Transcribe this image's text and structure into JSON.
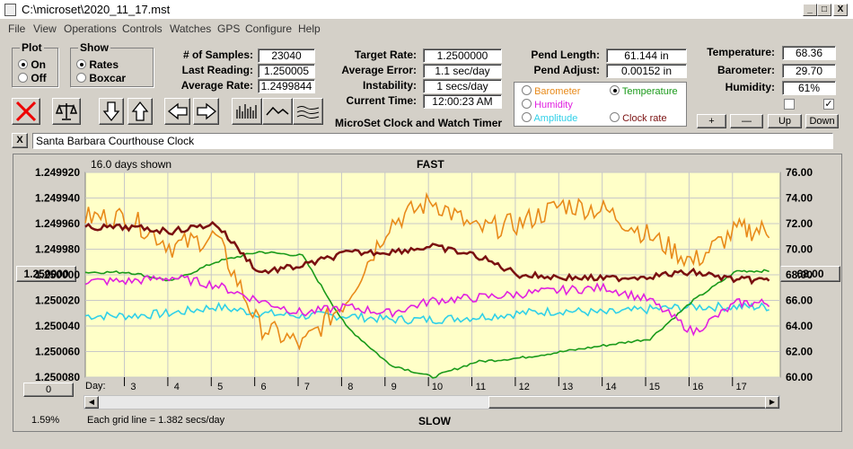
{
  "window": {
    "title": "C:\\microset\\2020_11_17.mst",
    "min": "_",
    "max": "□",
    "close": "X"
  },
  "menu": [
    "File",
    "View",
    "Operations",
    "Controls",
    "Watches",
    "GPS",
    "Configure",
    "Help"
  ],
  "plot": {
    "legend": "Plot",
    "on": "On",
    "off": "Off",
    "selected": "On"
  },
  "show": {
    "legend": "Show",
    "rates": "Rates",
    "boxcar": "Boxcar",
    "selected": "Rates"
  },
  "stats": {
    "samples_label": "# of Samples:",
    "samples": "23040",
    "last_label": "Last Reading:",
    "last": "1.250005",
    "avg_label": "Average Rate:",
    "avg": "1.2499844",
    "target_label": "Target Rate:",
    "target": "1.2500000",
    "err_label": "Average Error:",
    "err": "1.1 sec/day",
    "inst_label": "Instability:",
    "inst": "1 secs/day",
    "time_label": "Current Time:",
    "time": "12:00:23 AM",
    "pend_len_label": "Pend Length:",
    "pend_len": "61.144 in",
    "pend_adj_label": "Pend Adjust:",
    "pend_adj": "0.00152 in",
    "temp_label": "Temperature:",
    "temp": "68.36",
    "baro_label": "Barometer:",
    "baro": "29.70",
    "hum_label": "Humidity:",
    "hum": "61%"
  },
  "app_title": "MicroSet Clock and Watch Timer",
  "channels": [
    {
      "name": "Barometer",
      "color": "#e88a1a"
    },
    {
      "name": "Temperature",
      "color": "#1a9a1a",
      "selected": true
    },
    {
      "name": "Humidity",
      "color": "#e020e0"
    },
    {
      "name": "Clock rate",
      "color": "#7a1010"
    },
    {
      "name": "Amplitude",
      "color": "#30d0e8"
    }
  ],
  "right_buttons": [
    "+",
    "—",
    "Up",
    "Down"
  ],
  "clock_name": "Santa Barbara Courthouse Clock",
  "close_x": "X",
  "chart": {
    "shown": "16.0 days shown",
    "fast": "FAST",
    "slow": "SLOW",
    "day_label": "Day:",
    "grid_note": "Each grid line = 1.382 secs/day",
    "percent": "1.59%",
    "left_btn": "1.250000",
    "right_btn": "68.00",
    "zero_btn": "0"
  },
  "chart_data": {
    "type": "line",
    "x": [
      3,
      4,
      5,
      6,
      7,
      8,
      9,
      10,
      11,
      12,
      13,
      14,
      15,
      16,
      17
    ],
    "y_left": [
      "1.249920",
      "1.249940",
      "1.249960",
      "1.249980",
      "1.250000",
      "1.250020",
      "1.250040",
      "1.250060",
      "1.250080"
    ],
    "y_right": [
      "76.00",
      "74.00",
      "72.00",
      "70.00",
      "68.00",
      "66.00",
      "64.00",
      "62.00",
      "60.00"
    ],
    "series": [
      {
        "name": "Clock rate",
        "color": "#7a1010",
        "unit": "left",
        "values": [
          1.249963,
          1.249966,
          1.24996,
          1.249998,
          1.249993,
          1.249983,
          1.249982,
          1.249978,
          1.249985,
          1.25,
          1.250002,
          1.250003,
          1.250001,
          1.249998,
          1.250004
        ]
      },
      {
        "name": "Barometer",
        "color": "#e88a1a",
        "unit": "right",
        "values": [
          72.5,
          70.2,
          71.0,
          64.0,
          62.5,
          66.0,
          72.0,
          73.8,
          71.5,
          72.0,
          73.5,
          73.0,
          71.0,
          69.0,
          71.5
        ]
      },
      {
        "name": "Temperature",
        "color": "#1a9a1a",
        "unit": "right",
        "values": [
          68.2,
          67.5,
          69.0,
          69.8,
          69.5,
          64.0,
          61.0,
          60.0,
          61.2,
          61.5,
          62.0,
          62.5,
          63.0,
          66.0,
          68.3
        ]
      },
      {
        "name": "Humidity",
        "color": "#e020e0",
        "unit": "right",
        "values": [
          67.5,
          67.8,
          67.2,
          66.0,
          65.0,
          65.5,
          65.0,
          66.0,
          66.2,
          66.5,
          66.8,
          67.0,
          66.0,
          63.5,
          65.8
        ]
      },
      {
        "name": "Amplitude",
        "color": "#30d0e8",
        "unit": "right",
        "values": [
          64.8,
          65.0,
          65.5,
          65.0,
          64.8,
          64.8,
          64.5,
          64.5,
          64.7,
          65.0,
          65.2,
          65.0,
          65.3,
          65.5,
          65.5
        ]
      }
    ]
  }
}
